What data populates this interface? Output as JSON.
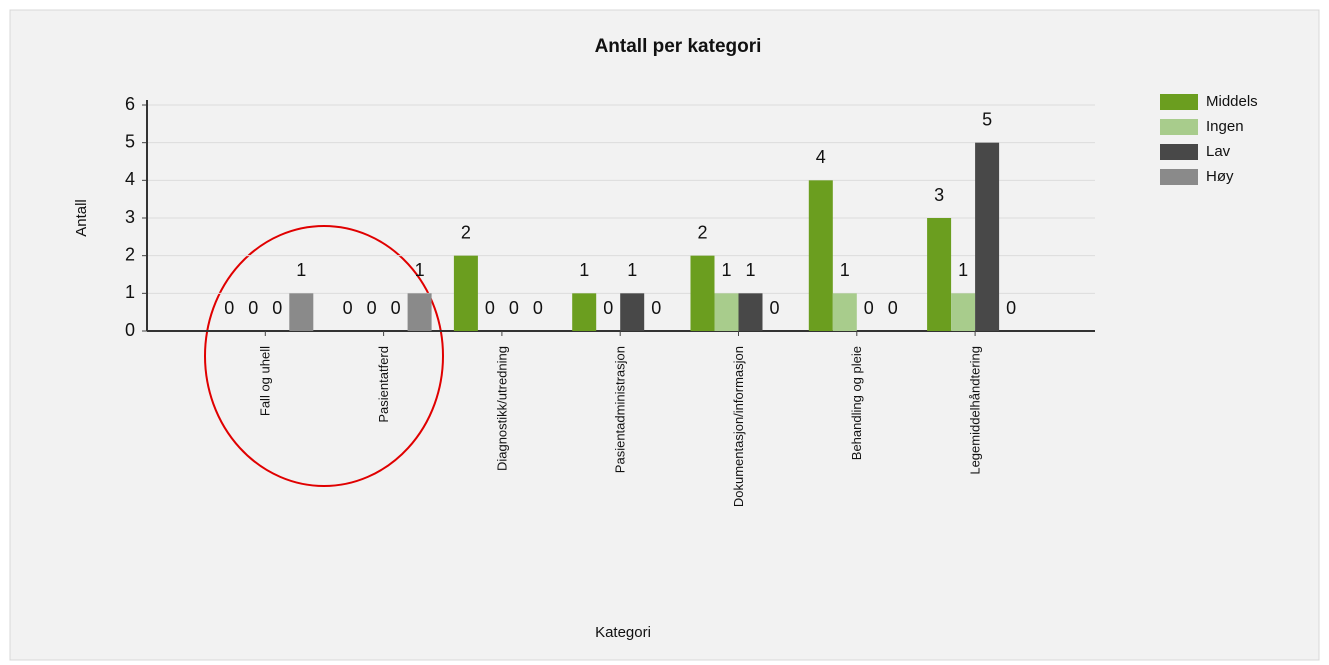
{
  "chart_data": {
    "type": "bar",
    "title": "Antall per kategori",
    "x_label": "Kategori",
    "y_label": "Antall",
    "categories": [
      "Fall og uhell",
      "Pasientatferd",
      "Diagnostikk/utredning",
      "Pasientadministrasjon",
      "Dokumentasjon/informasjon",
      "Behandling og pleie",
      "Legemiddelhåndtering"
    ],
    "series": [
      {
        "name": "Middels",
        "color": "#6b9e1f",
        "values": [
          0,
          0,
          2,
          1,
          2,
          4,
          3
        ]
      },
      {
        "name": "Ingen",
        "color": "#a8cc8c",
        "values": [
          0,
          0,
          0,
          0,
          1,
          1,
          1
        ]
      },
      {
        "name": "Lav",
        "color": "#484848",
        "values": [
          0,
          0,
          0,
          1,
          1,
          0,
          5
        ]
      },
      {
        "name": "Høy",
        "color": "#8a8a8a",
        "values": [
          1,
          1,
          0,
          0,
          0,
          0,
          0
        ]
      }
    ],
    "ylim": [
      0,
      6
    ],
    "yticks": [
      0,
      1,
      2,
      3,
      4,
      5,
      6
    ],
    "grid": true,
    "legend": "right"
  }
}
